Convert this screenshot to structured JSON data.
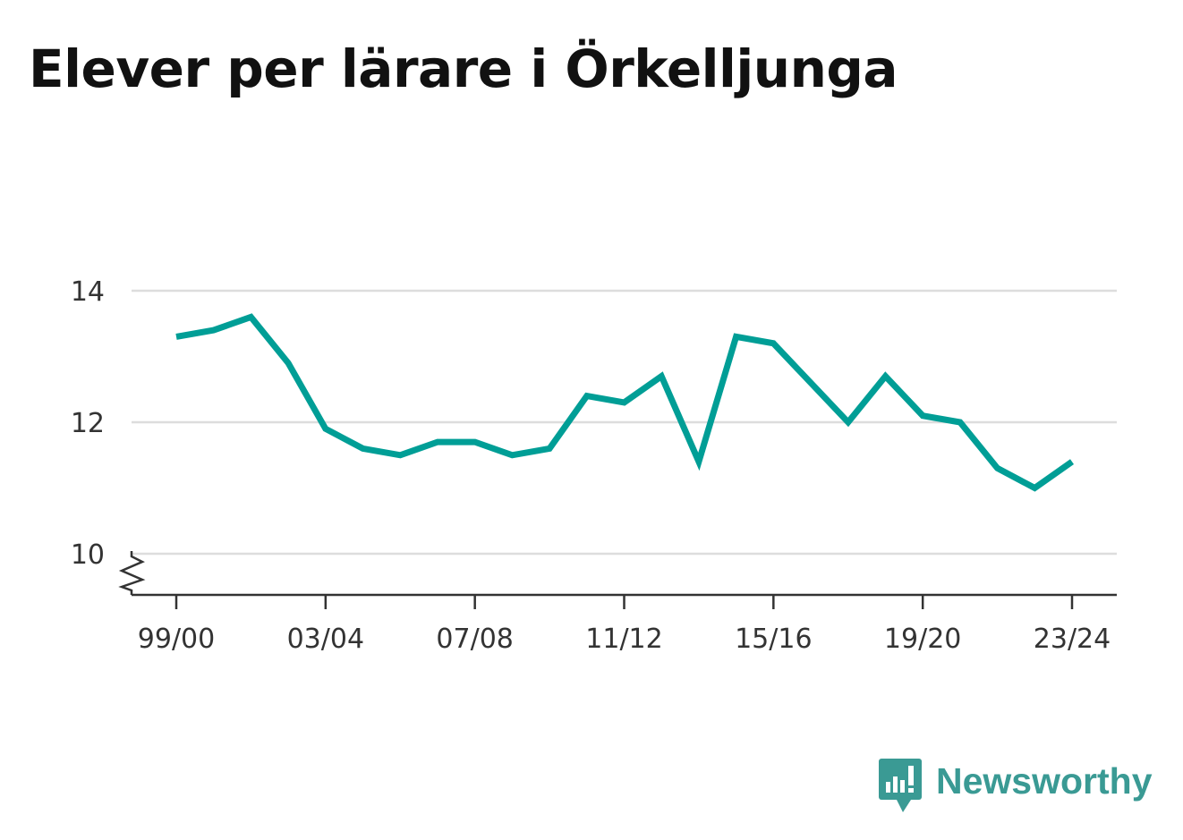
{
  "title": "Elever per lärare i Örkelljunga",
  "brand": {
    "name": "Newsworthy",
    "logo_icon": "newsworthy-chart-bubble-icon",
    "color": "#3a9a94"
  },
  "chart_data": {
    "type": "line",
    "title": "Elever per lärare i Örkelljunga",
    "xlabel": "",
    "ylabel": "",
    "x": [
      "99/00",
      "00/01",
      "01/02",
      "02/03",
      "03/04",
      "04/05",
      "05/06",
      "06/07",
      "07/08",
      "08/09",
      "09/10",
      "10/11",
      "11/12",
      "12/13",
      "13/14",
      "14/15",
      "15/16",
      "16/17",
      "17/18",
      "18/19",
      "19/20",
      "20/21",
      "21/22",
      "22/23",
      "23/24"
    ],
    "x_tick_labels": [
      "99/00",
      "03/04",
      "07/08",
      "11/12",
      "15/16",
      "19/20",
      "23/24"
    ],
    "series": [
      {
        "values": [
          13.3,
          13.4,
          13.6,
          12.9,
          11.9,
          11.6,
          11.5,
          11.7,
          11.7,
          11.5,
          11.6,
          12.4,
          12.3,
          12.7,
          11.4,
          13.3,
          13.2,
          12.6,
          12.0,
          12.7,
          12.1,
          12.0,
          11.3,
          11.0,
          11.4
        ],
        "color": "#009e96"
      }
    ],
    "y_ticks": [
      10,
      12,
      14
    ],
    "ylim": [
      9.4,
      14
    ],
    "y_axis_break": true,
    "grid": true,
    "legend": "none"
  }
}
